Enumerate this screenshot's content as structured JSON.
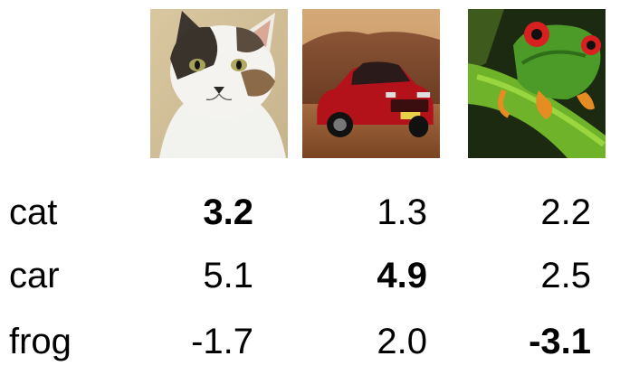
{
  "images": [
    {
      "name": "cat",
      "description_icon": "cat-photo"
    },
    {
      "name": "car",
      "description_icon": "car-photo"
    },
    {
      "name": "frog",
      "description_icon": "frog-photo"
    }
  ],
  "rows": [
    {
      "label": "cat",
      "scores": [
        "3.2",
        "1.3",
        "2.2"
      ]
    },
    {
      "label": "car",
      "scores": [
        "5.1",
        "4.9",
        "2.5"
      ]
    },
    {
      "label": "frog",
      "scores": [
        "-1.7",
        "2.0",
        "-3.1"
      ]
    }
  ],
  "colors": {
    "text": "#000000",
    "background": "#ffffff"
  }
}
